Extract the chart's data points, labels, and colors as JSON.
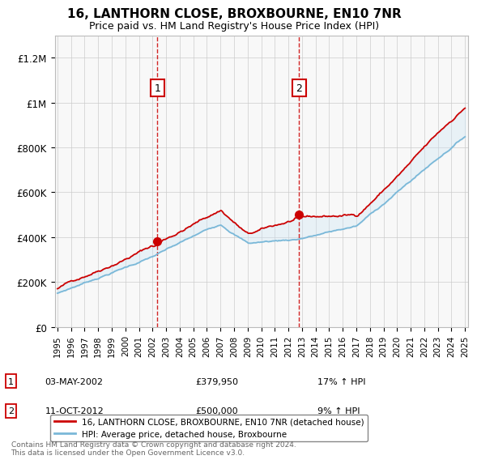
{
  "title": "16, LANTHORN CLOSE, BROXBOURNE, EN10 7NR",
  "subtitle": "Price paid vs. HM Land Registry's House Price Index (HPI)",
  "ylim": [
    0,
    1300000
  ],
  "yticks": [
    0,
    200000,
    400000,
    600000,
    800000,
    1000000,
    1200000
  ],
  "ytick_labels": [
    "£0",
    "£200K",
    "£400K",
    "£600K",
    "£800K",
    "£1M",
    "£1.2M"
  ],
  "xstart_year": 1995,
  "xend_year": 2025,
  "sale1_date": "03-MAY-2002",
  "sale1_price": 379950,
  "sale1_hpi_pct": "17%",
  "sale1_label": "1",
  "sale1_year": 2002.35,
  "sale2_date": "11-OCT-2012",
  "sale2_price": 500000,
  "sale2_hpi_pct": "9%",
  "sale2_label": "2",
  "sale2_year": 2012.78,
  "hpi_color": "#7ab8d8",
  "price_color": "#cc0000",
  "shade_color": "#cce4f5",
  "vline_color": "#cc0000",
  "legend_label_price": "16, LANTHORN CLOSE, BROXBOURNE, EN10 7NR (detached house)",
  "legend_label_hpi": "HPI: Average price, detached house, Broxbourne",
  "footer": "Contains HM Land Registry data © Crown copyright and database right 2024.\nThis data is licensed under the Open Government Licence v3.0.",
  "background_color": "#f5f5f5",
  "plot_bg_color": "#f0f0f0"
}
